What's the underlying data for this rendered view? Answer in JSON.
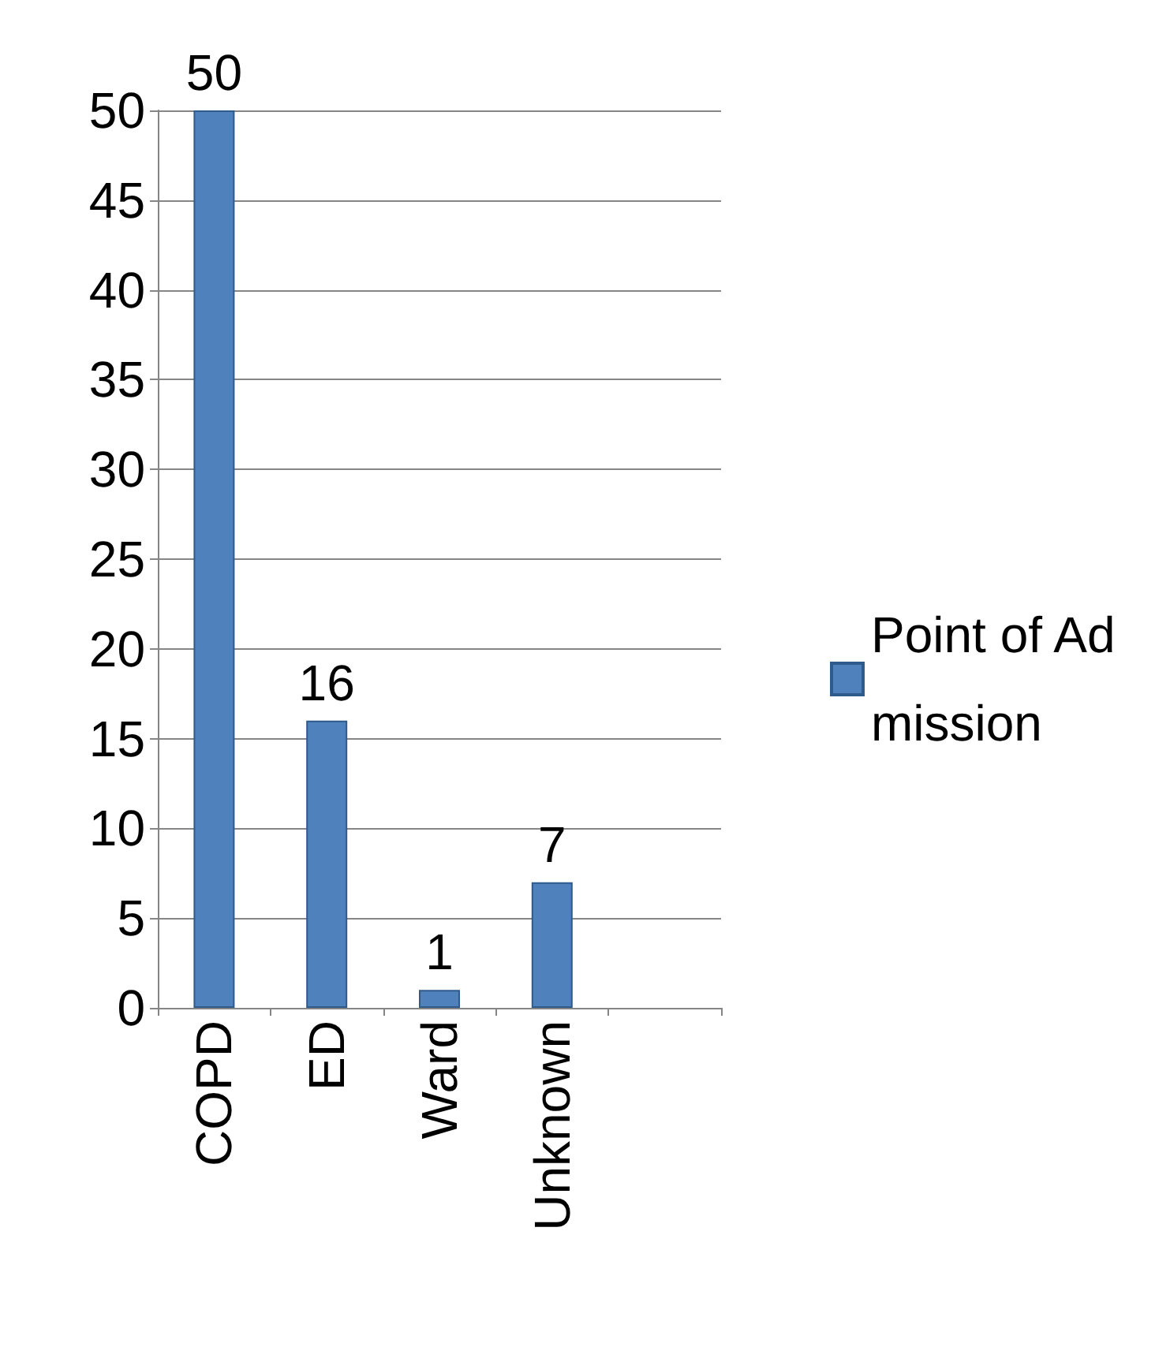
{
  "chart_data": {
    "type": "bar",
    "categories": [
      "COPD",
      "ED",
      "Ward",
      "Unknown",
      null
    ],
    "series": [
      {
        "name": "Point of Admission",
        "color": "#4f81bd",
        "values": [
          50,
          16,
          1,
          7,
          null
        ]
      }
    ],
    "ylim": [
      0,
      50
    ],
    "yticks": [
      0,
      5,
      10,
      15,
      20,
      25,
      30,
      35,
      40,
      45,
      50
    ],
    "grid": "y",
    "legend": "right",
    "data_labels": true
  }
}
